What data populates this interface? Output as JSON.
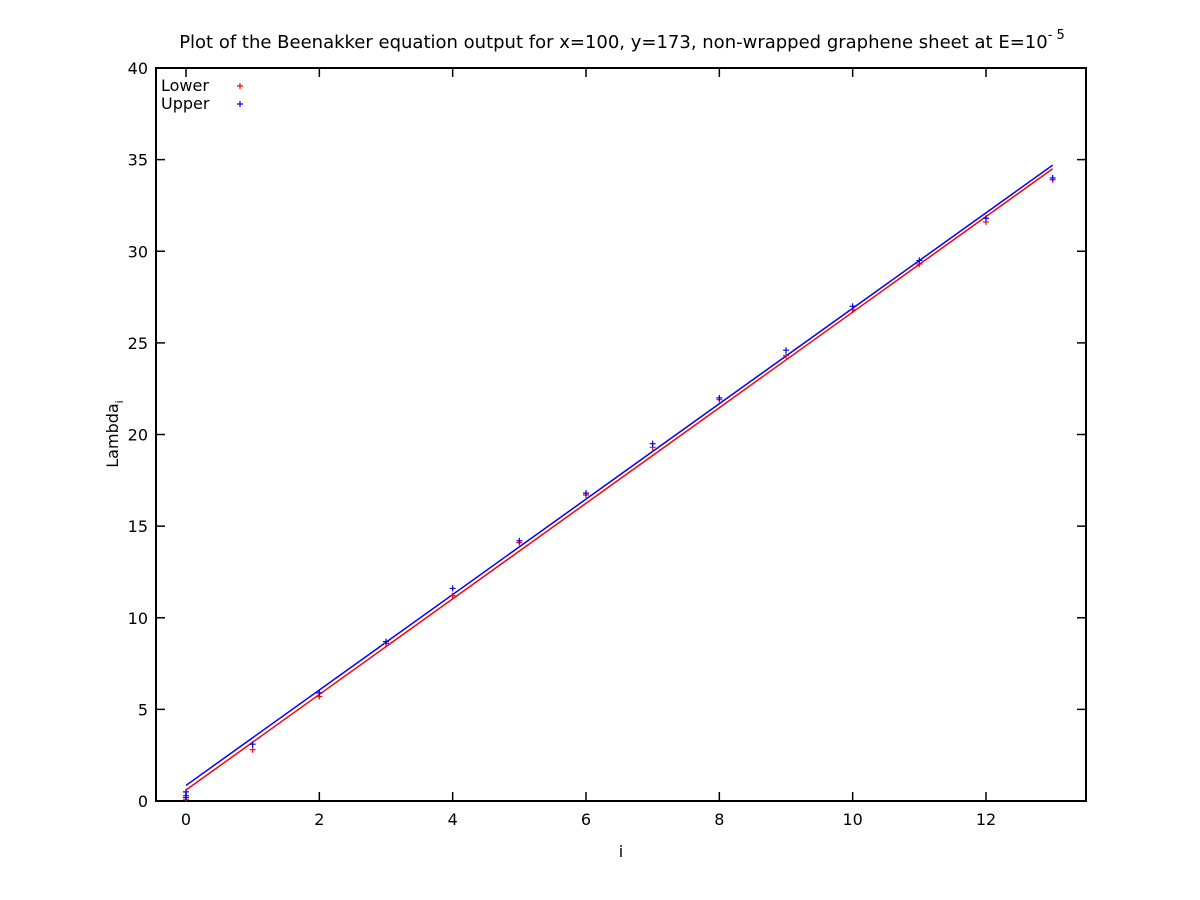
{
  "chart_data": {
    "type": "scatter",
    "title": "Plot of the Beenakker equation output for x=100, y=173, non-wrapped graphene sheet at E=10",
    "title_exponent": "- 5",
    "xlabel": "i",
    "ylabel": "Lambda",
    "ylabel_subscript": "i",
    "xlim": [
      -0.45,
      13.5
    ],
    "ylim": [
      0,
      40
    ],
    "xticks": [
      0,
      2,
      4,
      6,
      8,
      10,
      12
    ],
    "xtick_labels": [
      "0",
      "2",
      "4",
      "6",
      "8",
      "10",
      "12"
    ],
    "yticks": [
      0,
      5,
      10,
      15,
      20,
      25,
      30,
      35,
      40
    ],
    "ytick_labels": [
      "0",
      "5",
      "10",
      "15",
      "20",
      "25",
      "30",
      "35",
      "40"
    ],
    "grid": false,
    "legend_position": "top-left",
    "series": [
      {
        "name": "Lower",
        "color": "#ff0000",
        "x": [
          0,
          0,
          1,
          2,
          3,
          4,
          5,
          6,
          7,
          8,
          9,
          10,
          11,
          12,
          13
        ],
        "y": [
          0.1,
          0.3,
          2.8,
          5.7,
          8.6,
          11.2,
          14.1,
          16.7,
          19.3,
          21.9,
          24.3,
          26.8,
          29.3,
          31.6,
          33.9
        ],
        "fit": {
          "x": [
            0,
            13
          ],
          "y": [
            0.6,
            34.5
          ]
        }
      },
      {
        "name": "Upper",
        "color": "#0000ff",
        "x": [
          0,
          0,
          1,
          2,
          3,
          4,
          5,
          6,
          7,
          8,
          9,
          10,
          11,
          12,
          13
        ],
        "y": [
          0.2,
          0.5,
          3.1,
          5.9,
          8.7,
          11.6,
          14.2,
          16.8,
          19.5,
          22.0,
          24.6,
          27.0,
          29.5,
          31.8,
          34.0
        ],
        "fit": {
          "x": [
            0,
            13
          ],
          "y": [
            0.85,
            34.7
          ]
        }
      }
    ]
  }
}
